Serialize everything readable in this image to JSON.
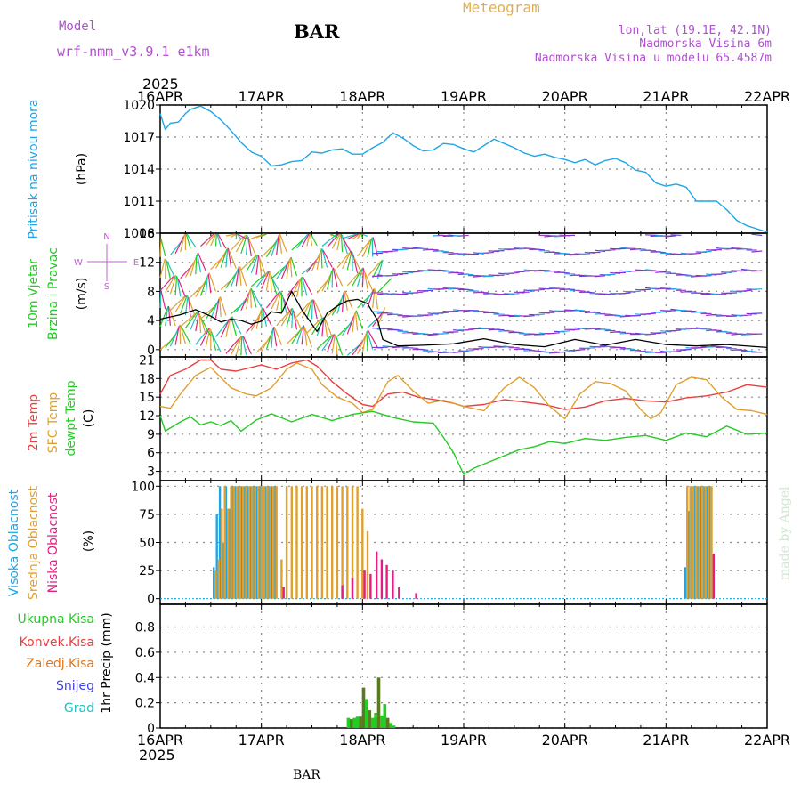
{
  "header": {
    "model_label": "Model",
    "model_name": "wrf-nmm_v3.9.1  e1km",
    "station": "BAR",
    "chart_title": "Meteogram",
    "lonlat": "lon,lat (19.1E, 42.1N)",
    "elevation": "Nadmorska Visina 6m",
    "model_elevation": "Nadmorska Visina u modelu 65.4587m",
    "year_top": "2025",
    "year_bottom": "2025",
    "footer_station": "BAR",
    "watermark": "made by Angel"
  },
  "colors": {
    "pressure": "#1ea6e6",
    "wind_label": "#22cc22",
    "wind_units": "#c060d0",
    "temp2m": "#e84040",
    "sfc": "#e0a030",
    "dew": "#22cc22",
    "high_cloud": "#1ea6e6",
    "mid_cloud": "#e0a030",
    "low_cloud": "#e02080",
    "total_precip": "#22cc22",
    "conv_precip": "#e84040",
    "frozen_precip": "#e07820",
    "snow": "#4040e0",
    "graupel": "#20c0c0",
    "precip_dark": "#5a7a20",
    "axis": "#000000",
    "grid": "#8c8c8c",
    "header_purple": "#b050d0",
    "title_orange": "#e0b050"
  },
  "chart_data": [
    {
      "type": "line",
      "panel": "pressure",
      "x_tick_labels": [
        "16APR",
        "17APR",
        "18APR",
        "19APR",
        "20APR",
        "21APR",
        "22APR"
      ],
      "ylabel": [
        "Pritisak na nivou mora",
        "(hPa)"
      ],
      "ylim": [
        1008,
        1020
      ],
      "yticks": [
        1008,
        1011,
        1014,
        1017,
        1020
      ],
      "grid": true,
      "series": [
        {
          "x": [
            0,
            0.05,
            0.1,
            0.18,
            0.25,
            0.3,
            0.4,
            0.5,
            0.6,
            0.7,
            0.8,
            0.9,
            1.0,
            1.1,
            1.2,
            1.3,
            1.4,
            1.5,
            1.6,
            1.7,
            1.8,
            1.9,
            2.0,
            2.1,
            2.2,
            2.3,
            2.4,
            2.5,
            2.6,
            2.7,
            2.8,
            2.9,
            3.0,
            3.1,
            3.2,
            3.3,
            3.4,
            3.5,
            3.6,
            3.7,
            3.8,
            3.9,
            4.0,
            4.1,
            4.2,
            4.3,
            4.4,
            4.5,
            4.6,
            4.7,
            4.8,
            4.9,
            5.0,
            5.1,
            5.2,
            5.3,
            5.4,
            5.5,
            5.6,
            5.7,
            5.8,
            5.9,
            6.0
          ],
          "values": [
            1019.2,
            1017.7,
            1018.3,
            1018.4,
            1019.2,
            1019.6,
            1019.9,
            1019.4,
            1018.6,
            1017.6,
            1016.5,
            1015.6,
            1015.2,
            1014.3,
            1014.4,
            1014.7,
            1014.8,
            1015.6,
            1015.5,
            1015.8,
            1015.9,
            1015.4,
            1015.4,
            1016.0,
            1016.5,
            1017.4,
            1016.9,
            1016.2,
            1015.7,
            1015.8,
            1016.4,
            1016.3,
            1015.9,
            1015.6,
            1016.2,
            1016.8,
            1016.4,
            1016.0,
            1015.5,
            1015.2,
            1015.4,
            1015.1,
            1014.9,
            1014.6,
            1014.9,
            1014.4,
            1014.8,
            1015.0,
            1014.6,
            1013.9,
            1013.7,
            1012.7,
            1012.4,
            1012.6,
            1012.3,
            1011.0,
            1011.0,
            1011.0,
            1010.2,
            1009.2,
            1008.7,
            1008.4,
            1008.1
          ]
        }
      ]
    },
    {
      "type": "line",
      "panel": "wind",
      "ylabel": [
        "10m Vjetar",
        "Brzina i Pravac",
        "(m/s)"
      ],
      "direction_legend": [
        "N",
        "E",
        "W",
        "S"
      ],
      "ylim": [
        -1,
        16
      ],
      "yticks": [
        0,
        4,
        8,
        12,
        16
      ],
      "grid": true,
      "series": [
        {
          "name": "speed",
          "x": [
            0,
            0.2,
            0.35,
            0.5,
            0.6,
            0.7,
            0.8,
            0.9,
            1.0,
            1.1,
            1.2,
            1.3,
            1.4,
            1.5,
            1.55,
            1.65,
            1.75,
            1.85,
            1.95,
            2.05,
            2.15,
            2.2,
            2.35,
            2.6,
            2.9,
            3.2,
            3.5,
            3.8,
            4.1,
            4.4,
            4.7,
            5.0,
            5.3,
            5.6,
            6.0
          ],
          "values": [
            4.2,
            4.8,
            5.5,
            4.6,
            3.8,
            4.2,
            4.0,
            3.5,
            3.9,
            5.2,
            5.0,
            8.0,
            5.5,
            3.5,
            2.5,
            5.0,
            6.0,
            6.7,
            6.9,
            6.3,
            4.0,
            1.4,
            0.5,
            0.6,
            0.8,
            1.5,
            0.7,
            0.4,
            1.4,
            0.6,
            1.4,
            0.7,
            0.5,
            0.7,
            0.3
          ]
        }
      ]
    },
    {
      "type": "line",
      "panel": "temperature",
      "ylabel": [
        "2m Temp",
        "SFC Temp",
        "dewpt Temp",
        "(C)"
      ],
      "ylim": [
        1.5,
        21.5
      ],
      "yticks": [
        3,
        6,
        9,
        12,
        15,
        18,
        21
      ],
      "grid": true,
      "series": [
        {
          "name": "2m Temp",
          "x": [
            0,
            0.1,
            0.25,
            0.4,
            0.5,
            0.6,
            0.75,
            0.9,
            1.0,
            1.15,
            1.3,
            1.45,
            1.55,
            1.7,
            1.85,
            2.0,
            2.1,
            2.25,
            2.4,
            2.55,
            2.75,
            2.9,
            3.0,
            3.2,
            3.4,
            3.6,
            3.8,
            4.0,
            4.2,
            4.4,
            4.6,
            4.8,
            5.0,
            5.2,
            5.4,
            5.6,
            5.8,
            6.0
          ],
          "values": [
            15.5,
            18.5,
            19.5,
            21.0,
            21.0,
            19.5,
            19.2,
            19.8,
            20.2,
            19.5,
            20.5,
            21.0,
            20.0,
            17.5,
            15.5,
            13.8,
            13.5,
            15.5,
            15.8,
            15.0,
            14.5,
            14.0,
            13.5,
            13.8,
            14.6,
            14.2,
            13.8,
            13.0,
            13.4,
            14.4,
            14.8,
            14.4,
            14.2,
            14.9,
            15.2,
            15.8,
            17.0,
            16.6
          ]
        },
        {
          "name": "SFC Temp",
          "x": [
            0,
            0.1,
            0.2,
            0.35,
            0.5,
            0.7,
            0.85,
            0.95,
            1.1,
            1.25,
            1.35,
            1.5,
            1.6,
            1.75,
            1.9,
            2.0,
            2.1,
            2.25,
            2.35,
            2.5,
            2.65,
            2.8,
            3.0,
            3.2,
            3.4,
            3.55,
            3.7,
            3.85,
            4.0,
            4.15,
            4.3,
            4.45,
            4.6,
            4.75,
            4.85,
            4.95,
            5.1,
            5.25,
            5.4,
            5.55,
            5.7,
            5.85,
            6.0
          ],
          "values": [
            13.5,
            13.2,
            15.5,
            18.5,
            19.8,
            16.5,
            15.5,
            15.2,
            16.5,
            19.5,
            20.5,
            19.5,
            17.0,
            15.0,
            14.0,
            12.5,
            13.0,
            17.5,
            18.5,
            16.0,
            14.0,
            14.5,
            13.5,
            12.8,
            16.5,
            18.2,
            16.5,
            13.5,
            11.5,
            15.5,
            17.5,
            17.2,
            16.0,
            13.0,
            11.5,
            12.5,
            17.0,
            18.2,
            17.8,
            15.0,
            13.0,
            12.8,
            12.2
          ]
        },
        {
          "name": "dewpt Temp",
          "x": [
            0,
            0.05,
            0.2,
            0.3,
            0.4,
            0.5,
            0.6,
            0.7,
            0.8,
            0.95,
            1.1,
            1.3,
            1.5,
            1.7,
            1.9,
            2.1,
            2.3,
            2.5,
            2.7,
            2.8,
            2.9,
            3.0,
            3.1,
            3.25,
            3.4,
            3.55,
            3.7,
            3.85,
            4.0,
            4.2,
            4.4,
            4.6,
            4.8,
            5.0,
            5.2,
            5.4,
            5.6,
            5.8,
            6.0
          ],
          "values": [
            12.0,
            9.5,
            11.0,
            11.8,
            10.5,
            11.0,
            10.4,
            11.2,
            9.5,
            11.3,
            12.3,
            11.0,
            12.2,
            11.2,
            12.2,
            12.7,
            11.7,
            11.0,
            10.8,
            8.5,
            6.0,
            2.5,
            3.5,
            4.5,
            5.5,
            6.5,
            7.0,
            7.8,
            7.5,
            8.3,
            8.0,
            8.5,
            8.8,
            8.0,
            9.2,
            8.6,
            10.3,
            9.0,
            9.2
          ]
        }
      ]
    },
    {
      "type": "bar",
      "panel": "cloud",
      "ylabel": [
        "Visoka Oblacnost",
        "Srednja Oblacnost",
        "Niska Oblacnost",
        "(%)"
      ],
      "ylim": [
        -5,
        105
      ],
      "yticks": [
        0,
        25,
        50,
        75,
        100
      ],
      "grid": true,
      "series": [
        {
          "name": "Visoka Oblacnost",
          "x": [
            0.53,
            0.56,
            0.59,
            0.62,
            0.65,
            0.68,
            0.71,
            0.74,
            0.77,
            0.8,
            0.83,
            0.86,
            0.89,
            0.92,
            0.95,
            0.98,
            1.01,
            1.04,
            1.07,
            1.1,
            1.13,
            5.19,
            5.22,
            5.25,
            5.28,
            5.31,
            5.34,
            5.37,
            5.4,
            5.43
          ],
          "values": [
            28,
            75,
            100,
            50,
            100,
            80,
            100,
            100,
            100,
            100,
            100,
            100,
            100,
            100,
            100,
            100,
            100,
            100,
            100,
            100,
            100,
            28,
            78,
            100,
            100,
            100,
            100,
            100,
            100,
            100
          ]
        },
        {
          "name": "Srednja Oblacnost",
          "x": [
            0.55,
            0.58,
            0.61,
            0.64,
            0.67,
            0.7,
            0.73,
            0.76,
            0.79,
            0.82,
            0.85,
            0.88,
            0.91,
            0.94,
            0.97,
            1.0,
            1.03,
            1.06,
            1.09,
            1.12,
            1.15,
            1.2,
            1.25,
            1.3,
            1.35,
            1.4,
            1.45,
            1.5,
            1.55,
            1.6,
            1.65,
            1.7,
            1.75,
            1.8,
            1.85,
            1.9,
            1.95,
            2.0,
            2.05,
            5.21,
            5.24,
            5.27,
            5.3,
            5.33,
            5.36,
            5.39,
            5.42,
            5.45
          ],
          "values": [
            25,
            35,
            80,
            100,
            80,
            100,
            100,
            100,
            100,
            100,
            100,
            100,
            100,
            100,
            100,
            100,
            100,
            100,
            100,
            100,
            100,
            35,
            100,
            100,
            100,
            100,
            100,
            100,
            100,
            100,
            100,
            100,
            100,
            100,
            100,
            100,
            100,
            80,
            60,
            100,
            100,
            100,
            100,
            100,
            100,
            100,
            100,
            100
          ]
        },
        {
          "name": "Niska Oblacnost",
          "x": [
            1.22,
            1.8,
            1.9,
            2.02,
            2.08,
            2.14,
            2.19,
            2.24,
            2.3,
            2.36,
            2.53,
            5.47
          ],
          "values": [
            10,
            12,
            18,
            25,
            22,
            42,
            35,
            30,
            25,
            10,
            5,
            40
          ]
        }
      ]
    },
    {
      "type": "bar",
      "panel": "precip",
      "ylabel": [
        "1hr Precip (mm)"
      ],
      "legend": [
        "Ukupna Kisa",
        "Konvek.Kisa",
        "Zaledj.Kisa",
        "Snijeg",
        "Grad"
      ],
      "ylim": [
        0,
        0.98
      ],
      "yticks": [
        0,
        0.2,
        0.4,
        0.6,
        0.8
      ],
      "grid": true,
      "series": [
        {
          "name": "Ukupna Kisa",
          "x": [
            1.86,
            1.89,
            1.92,
            1.95,
            1.98,
            2.01,
            2.04,
            2.07,
            2.1,
            2.13,
            2.16,
            2.19,
            2.22,
            2.25,
            2.28,
            2.31
          ],
          "values": [
            0.08,
            0.07,
            0.08,
            0.09,
            0.09,
            0.32,
            0.23,
            0.14,
            0.08,
            0.12,
            0.4,
            0.1,
            0.19,
            0.08,
            0.04,
            0.02
          ]
        }
      ]
    }
  ]
}
